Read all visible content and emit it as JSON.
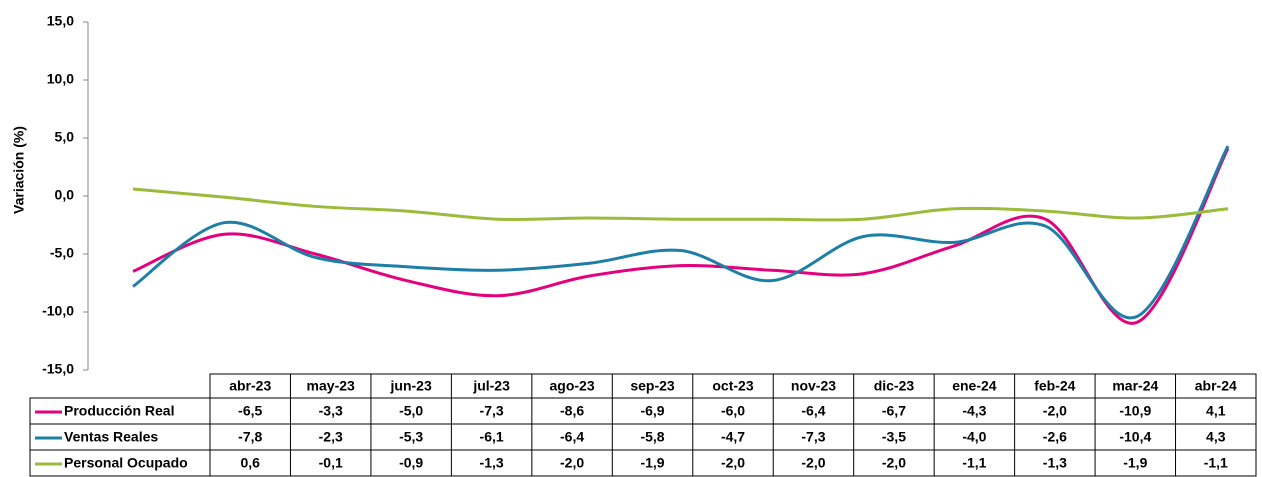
{
  "chart_data": {
    "type": "line",
    "y_label": "Variación (%)",
    "categories": [
      "abr-23",
      "may-23",
      "jun-23",
      "jul-23",
      "ago-23",
      "sep-23",
      "oct-23",
      "nov-23",
      "dic-23",
      "ene-24",
      "feb-24",
      "mar-24",
      "abr-24"
    ],
    "ylim": [
      -15,
      15
    ],
    "yticks": [
      {
        "value": -15,
        "label": "-15,0"
      },
      {
        "value": -10,
        "label": "-10,0"
      },
      {
        "value": -5,
        "label": "-5,0"
      },
      {
        "value": 0,
        "label": "0,0"
      },
      {
        "value": 5,
        "label": "5,0"
      },
      {
        "value": 10,
        "label": "10,0"
      },
      {
        "value": 15,
        "label": "15,0"
      }
    ],
    "series": [
      {
        "name": "Producción Real",
        "color": "#e5007d",
        "values": [
          -6.5,
          -3.3,
          -5.0,
          -7.3,
          -8.6,
          -6.9,
          -6.0,
          -6.4,
          -6.7,
          -4.3,
          -2.0,
          -10.9,
          4.1
        ],
        "value_labels": [
          "-6,5",
          "-3,3",
          "-5,0",
          "-7,3",
          "-8,6",
          "-6,9",
          "-6,0",
          "-6,4",
          "-6,7",
          "-4,3",
          "-2,0",
          "-10,9",
          "4,1"
        ]
      },
      {
        "name": "Ventas Reales",
        "color": "#1d7ea6",
        "values": [
          -7.8,
          -2.3,
          -5.3,
          -6.1,
          -6.4,
          -5.8,
          -4.7,
          -7.3,
          -3.5,
          -4.0,
          -2.6,
          -10.4,
          4.3
        ],
        "value_labels": [
          "-7,8",
          "-2,3",
          "-5,3",
          "-6,1",
          "-6,4",
          "-5,8",
          "-4,7",
          "-7,3",
          "-3,5",
          "-4,0",
          "-2,6",
          "-10,4",
          "4,3"
        ]
      },
      {
        "name": "Personal Ocupado",
        "color": "#9bbb3b",
        "values": [
          0.6,
          -0.1,
          -0.9,
          -1.3,
          -2.0,
          -1.9,
          -2.0,
          -2.0,
          -2.0,
          -1.1,
          -1.3,
          -1.9,
          -1.1
        ],
        "value_labels": [
          "0,6",
          "-0,1",
          "-0,9",
          "-1,3",
          "-2,0",
          "-1,9",
          "-2,0",
          "-2,0",
          "-2,0",
          "-1,1",
          "-1,3",
          "-1,9",
          "-1,1"
        ]
      }
    ]
  }
}
